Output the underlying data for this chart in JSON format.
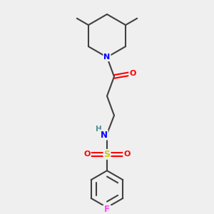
{
  "background_color": "#efefef",
  "atom_colors": {
    "N": "#0000ff",
    "O": "#ff0000",
    "S": "#cccc00",
    "F": "#ff44ff",
    "H": "#4a9090",
    "C": "#404040"
  },
  "bond_color": "#404040",
  "bond_width": 1.5,
  "figsize": [
    3.0,
    3.0
  ],
  "dpi": 100
}
